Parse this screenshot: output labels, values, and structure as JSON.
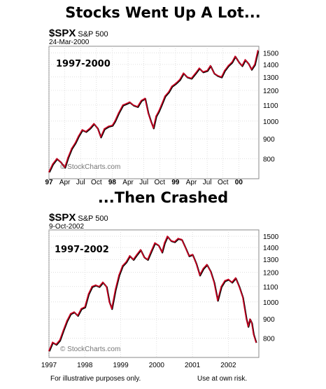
{
  "headings": {
    "top": "Stocks Went Up A Lot...",
    "bottom": "...Then Crashed"
  },
  "footer": {
    "left": "For illustrative purposes only.",
    "right": "Use at own risk."
  },
  "colors": {
    "line": "#cc0022",
    "shadow": "#000000",
    "grid": "#cccccc",
    "frame": "#888888"
  },
  "chart_data": [
    {
      "type": "line",
      "symbol": "$SPX",
      "name": "S&P 500",
      "date": "24-Mar-2000",
      "period_label": "1997-2000",
      "watermark": "© StockCharts.com",
      "y_scale": "log",
      "ylim": [
        710,
        1560
      ],
      "y_ticks": [
        800,
        900,
        1000,
        1100,
        1200,
        1300,
        1400,
        1500
      ],
      "x_range": [
        0,
        39.8
      ],
      "x_ticks": [
        {
          "label": "97",
          "at": 0,
          "bold": true
        },
        {
          "label": "Apr",
          "at": 3
        },
        {
          "label": "Jul",
          "at": 6
        },
        {
          "label": "Oct",
          "at": 9
        },
        {
          "label": "98",
          "at": 12,
          "bold": true
        },
        {
          "label": "Apr",
          "at": 15
        },
        {
          "label": "Jul",
          "at": 18
        },
        {
          "label": "Oct",
          "at": 21
        },
        {
          "label": "99",
          "at": 24,
          "bold": true
        },
        {
          "label": "Apr",
          "at": 27
        },
        {
          "label": "Jul",
          "at": 30
        },
        {
          "label": "Oct",
          "at": 33
        },
        {
          "label": "00",
          "at": 36,
          "bold": true
        }
      ],
      "series": [
        {
          "x": [
            0,
            0.7,
            1.5,
            2.2,
            3,
            3.6,
            4.3,
            5,
            5.6,
            6.3,
            7,
            7.8,
            8.5,
            9.2,
            9.8,
            10.5,
            11.3,
            12,
            12.5,
            13.2,
            14,
            14.7,
            15.3,
            16,
            16.8,
            17.5,
            18.2,
            18.8,
            19.3,
            19.8,
            20.3,
            20.8,
            21.3,
            22,
            22.7,
            23.3,
            24,
            24.8,
            25.5,
            26.2,
            27,
            27.8,
            28.5,
            29.2,
            30,
            30.6,
            31.3,
            32,
            32.7,
            33.3,
            34,
            34.7,
            35.3,
            36,
            36.6,
            37.2,
            37.8,
            38.4,
            39,
            39.6
          ],
          "values": [
            740,
            775,
            800,
            785,
            760,
            805,
            850,
            880,
            915,
            950,
            940,
            960,
            985,
            960,
            910,
            955,
            970,
            975,
            1000,
            1050,
            1100,
            1110,
            1120,
            1100,
            1090,
            1130,
            1145,
            1050,
            1000,
            960,
            1030,
            1060,
            1100,
            1160,
            1190,
            1230,
            1250,
            1280,
            1330,
            1300,
            1290,
            1330,
            1370,
            1340,
            1350,
            1390,
            1330,
            1310,
            1300,
            1350,
            1390,
            1420,
            1470,
            1420,
            1390,
            1440,
            1410,
            1360,
            1400,
            1520
          ]
        }
      ]
    },
    {
      "type": "line",
      "symbol": "$SPX",
      "name": "S&P 500",
      "date": "9-Oct-2002",
      "period_label": "1997-2002",
      "watermark": "© StockCharts.com",
      "y_scale": "log",
      "ylim": [
        710,
        1560
      ],
      "y_ticks": [
        800,
        900,
        1000,
        1100,
        1200,
        1300,
        1400,
        1500
      ],
      "x_range": [
        1997,
        2002.85
      ],
      "x_ticks": [
        {
          "label": "1997",
          "at": 1997
        },
        {
          "label": "1998",
          "at": 1998
        },
        {
          "label": "1999",
          "at": 1999
        },
        {
          "label": "2000",
          "at": 2000
        },
        {
          "label": "2001",
          "at": 2001
        },
        {
          "label": "2002",
          "at": 2002
        }
      ],
      "series": [
        {
          "x": [
            1997,
            1997.1,
            1997.2,
            1997.3,
            1997.4,
            1997.5,
            1997.6,
            1997.7,
            1997.8,
            1997.9,
            1998,
            1998.1,
            1998.2,
            1998.3,
            1998.4,
            1998.5,
            1998.6,
            1998.68,
            1998.75,
            1998.85,
            1998.95,
            1999.05,
            1999.15,
            1999.25,
            1999.35,
            1999.45,
            1999.55,
            1999.65,
            1999.75,
            1999.85,
            1999.95,
            2000.05,
            2000.15,
            2000.22,
            2000.3,
            2000.4,
            2000.5,
            2000.6,
            2000.7,
            2000.8,
            2000.9,
            2001,
            2001.1,
            2001.2,
            2001.3,
            2001.4,
            2001.5,
            2001.6,
            2001.7,
            2001.8,
            2001.9,
            2002,
            2002.1,
            2002.2,
            2002.3,
            2002.4,
            2002.5,
            2002.55,
            2002.6,
            2002.65,
            2002.7,
            2002.77
          ],
          "values": [
            740,
            780,
            770,
            790,
            840,
            890,
            930,
            940,
            920,
            960,
            970,
            1050,
            1100,
            1110,
            1100,
            1130,
            1100,
            1000,
            960,
            1080,
            1180,
            1250,
            1280,
            1330,
            1300,
            1340,
            1380,
            1320,
            1300,
            1370,
            1440,
            1420,
            1360,
            1440,
            1500,
            1460,
            1450,
            1480,
            1470,
            1400,
            1330,
            1340,
            1270,
            1180,
            1230,
            1260,
            1210,
            1130,
            1010,
            1100,
            1140,
            1150,
            1130,
            1160,
            1100,
            1030,
            900,
            860,
            900,
            880,
            820,
            780
          ]
        }
      ]
    }
  ]
}
